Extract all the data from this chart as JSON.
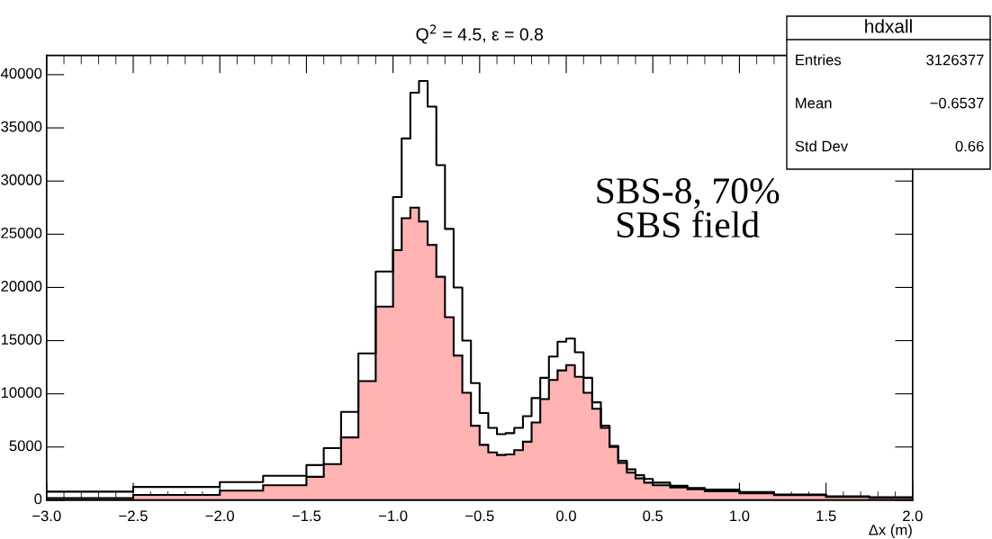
{
  "chart_data": {
    "type": "histogram",
    "title": "Q$^{2}$ = 4.5, ε = 0.8",
    "xlabel": "Δx (m)",
    "bins": [
      -3.0,
      -2.5,
      -2.0,
      -1.75,
      -1.5,
      -1.4,
      -1.3,
      -1.2,
      -1.1,
      -1.0,
      -0.95,
      -0.9,
      -0.85,
      -0.8,
      -0.75,
      -0.7,
      -0.65,
      -0.6,
      -0.55,
      -0.5,
      -0.45,
      -0.4,
      -0.35,
      -0.3,
      -0.25,
      -0.2,
      -0.15,
      -0.1,
      -0.05,
      0,
      0.05,
      0.1,
      0.15,
      0.2,
      0.25,
      0.3,
      0.35,
      0.4,
      0.45,
      0.5,
      0.6,
      0.7,
      0.8,
      1.0,
      1.2,
      1.5,
      1.75,
      2.0
    ],
    "series": [
      {
        "type": "step",
        "color": "#000000",
        "x": [
          -3.0,
          -2.5,
          -2.0,
          -1.75,
          -1.5,
          -1.4,
          -1.3,
          -1.2,
          -1.1,
          -1.0,
          -0.95,
          -0.9,
          -0.85,
          -0.8,
          -0.75,
          -0.7,
          -0.65,
          -0.6,
          -0.55,
          -0.5,
          -0.45,
          -0.4,
          -0.35,
          -0.3,
          -0.25,
          -0.2,
          -0.15,
          -0.1,
          -0.05,
          0,
          0.05,
          0.1,
          0.15,
          0.2,
          0.25,
          0.3,
          0.35,
          0.4,
          0.45,
          0.5,
          0.6,
          0.7,
          0.8,
          1.0,
          1.2,
          1.5,
          1.75,
          2.0
        ],
        "values": [
          800,
          1250,
          1700,
          2300,
          3300,
          4900,
          8300,
          13800,
          21500,
          28500,
          34000,
          38300,
          39400,
          37000,
          31500,
          25500,
          20000,
          15000,
          11000,
          8200,
          6800,
          6200,
          6300,
          6800,
          7900,
          9600,
          11500,
          13500,
          14900,
          15200,
          13900,
          11500,
          9200,
          7000,
          5100,
          3700,
          2900,
          2350,
          2000,
          1650,
          1350,
          1150,
          1000,
          760,
          540,
          370,
          280,
          280
        ]
      },
      {
        "color": "#ffb3b3",
        "values": [
          200,
          500,
          900,
          1400,
          2200,
          3400,
          5900,
          11200,
          18200,
          23500,
          26500,
          27500,
          26200,
          24000,
          21000,
          17200,
          13600,
          10100,
          7000,
          5200,
          4500,
          4250,
          4300,
          4700,
          5500,
          7300,
          9500,
          11300,
          12200,
          12700,
          11600,
          10100,
          8600,
          6800,
          5000,
          3500,
          2600,
          2050,
          1650,
          1400,
          1200,
          1020,
          830,
          640,
          470,
          310,
          220
        ]
      }
    ],
    "xlim": [
      -3.0,
      2.0
    ],
    "xticks": [
      {
        "value": -3.0,
        "label": "−3.0"
      },
      {
        "value": -2.5,
        "label": "−2.5"
      },
      {
        "value": -2.0,
        "label": "−2.0"
      },
      {
        "value": -1.5,
        "label": "−1.5"
      },
      {
        "value": -1.0,
        "label": "−1.0"
      },
      {
        "value": -0.5,
        "label": "−0.5"
      },
      {
        "value": 0,
        "label": "0.0"
      },
      {
        "value": 0.5,
        "label": "0.5"
      },
      {
        "value": 1.0,
        "label": "1.0"
      },
      {
        "value": 1.5,
        "label": "1.5"
      },
      {
        "value": 2.0,
        "label": "2.0"
      }
    ],
    "ylim": [
      0,
      41800
    ],
    "yticks": [
      0,
      5000,
      10000,
      15000,
      20000,
      25000,
      30000,
      35000,
      40000
    ],
    "grid": false,
    "annotations": [
      "SBS-8, 70%\nSBS field",
      "hdxall",
      "Entries\t3126377",
      "Mean\t−0.6537",
      "Std Dev\t0.66"
    ]
  }
}
